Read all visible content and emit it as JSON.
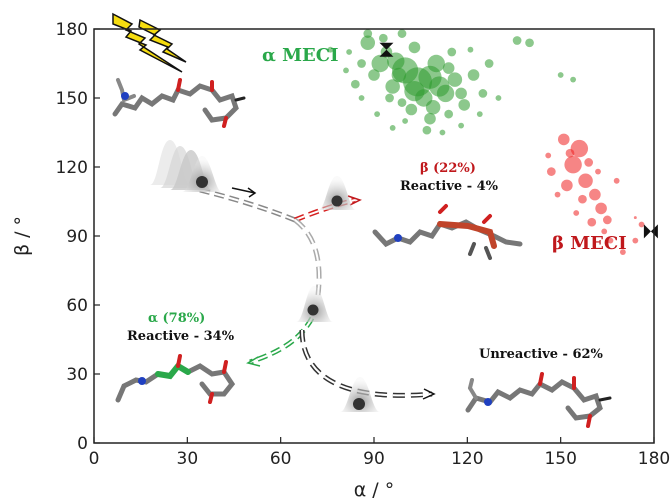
{
  "chart_data": {
    "type": "scatter",
    "xlabel": "α / °",
    "ylabel": "β / °",
    "xlim": [
      0,
      180
    ],
    "ylim": [
      0,
      180
    ],
    "xticks": [
      "0",
      "30",
      "60",
      "90",
      "120",
      "150",
      "180"
    ],
    "yticks": [
      "0",
      "30",
      "60",
      "90",
      "120",
      "150",
      "180"
    ],
    "grid": false,
    "series": [
      {
        "name": "α MECI",
        "color": "#2e9a2e",
        "points": [
          [
            100,
            162,
            9
          ],
          [
            104,
            157,
            10
          ],
          [
            108,
            159,
            8
          ],
          [
            97,
            166,
            6
          ],
          [
            111,
            155,
            7
          ],
          [
            113,
            152,
            6
          ],
          [
            106,
            150,
            6
          ],
          [
            96,
            155,
            5
          ],
          [
            92,
            165,
            6
          ],
          [
            88,
            174,
            5
          ],
          [
            110,
            165,
            6
          ],
          [
            103,
            172,
            4
          ],
          [
            116,
            158,
            5
          ],
          [
            118,
            152,
            4
          ],
          [
            102,
            145,
            4
          ],
          [
            108,
            141,
            4
          ],
          [
            114,
            143,
            3
          ],
          [
            99,
            148,
            3
          ],
          [
            95,
            150,
            3
          ],
          [
            90,
            160,
            4
          ],
          [
            86,
            165,
            3
          ],
          [
            119,
            147,
            4
          ],
          [
            122,
            160,
            4
          ],
          [
            125,
            152,
            3
          ],
          [
            107,
            136,
            3
          ],
          [
            112,
            135,
            2
          ],
          [
            100,
            140,
            2
          ],
          [
            96,
            137,
            2
          ],
          [
            91,
            143,
            2
          ],
          [
            86,
            150,
            2
          ],
          [
            84,
            156,
            3
          ],
          [
            82,
            170,
            2
          ],
          [
            115,
            170,
            3
          ],
          [
            121,
            171,
            2
          ],
          [
            124,
            143,
            2
          ],
          [
            118,
            138,
            2
          ],
          [
            109,
            146,
            5
          ],
          [
            103,
            153,
            7
          ],
          [
            98,
            160,
            5
          ],
          [
            94,
            170,
            4
          ],
          [
            114,
            163,
            4
          ],
          [
            127,
            165,
            3
          ],
          [
            130,
            150,
            2
          ],
          [
            93,
            176,
            3
          ],
          [
            99,
            178,
            3
          ],
          [
            88,
            178,
            3
          ],
          [
            76,
            171,
            2
          ],
          [
            81,
            162,
            2
          ],
          [
            150,
            160,
            2
          ],
          [
            154,
            158,
            2
          ],
          [
            136,
            175,
            3
          ],
          [
            140,
            174,
            3
          ]
        ]
      },
      {
        "name": "β MECI",
        "color": "#ee2020",
        "points": [
          [
            156,
            128,
            6
          ],
          [
            154,
            121,
            6
          ],
          [
            158,
            114,
            5
          ],
          [
            152,
            112,
            4
          ],
          [
            161,
            108,
            4
          ],
          [
            163,
            102,
            4
          ],
          [
            151,
            132,
            4
          ],
          [
            147,
            118,
            3
          ],
          [
            165,
            97,
            3
          ],
          [
            159,
            122,
            3
          ],
          [
            162,
            118,
            2
          ],
          [
            157,
            106,
            3
          ],
          [
            149,
            108,
            2
          ],
          [
            164,
            92,
            2
          ],
          [
            160,
            96,
            3
          ],
          [
            155,
            100,
            2
          ],
          [
            153,
            126,
            3
          ],
          [
            166,
            88,
            2
          ],
          [
            170,
            83,
            2
          ],
          [
            174,
            88,
            2
          ],
          [
            176,
            95,
            2
          ],
          [
            174,
            98,
            1
          ],
          [
            146,
            125,
            2
          ],
          [
            168,
            114,
            2
          ]
        ]
      }
    ],
    "meci_markers": [
      {
        "name": "α MECI",
        "alpha": 94,
        "beta": 171
      },
      {
        "name": "β MECI",
        "alpha": 179,
        "beta": 92
      }
    ],
    "annotations": {
      "alpha_meci": "α MECI",
      "beta_meci": "β MECI",
      "beta_yield": "β (22%)",
      "beta_reactive": "Reactive - 4%",
      "alpha_yield": "α (78%)",
      "alpha_reactive": "Reactive - 34%",
      "unreactive": "Unreactive - 62%"
    },
    "colors": {
      "alpha": "#2aa84a",
      "beta": "#c0181c",
      "axis": "#222222"
    }
  }
}
